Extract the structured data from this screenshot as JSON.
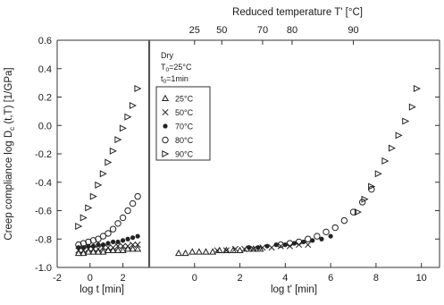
{
  "chart_data": [
    {
      "panel": "left",
      "type": "scatter",
      "xlabel": "log t [min]",
      "ylabel": "Creep compliance log D",
      "ylabel_sub": "c",
      "ylabel_rest": " (t,T) [1/GPa]",
      "xlim": [
        -2,
        3.6
      ],
      "ylim": [
        -1.0,
        0.6
      ],
      "x_ticks": [
        -2,
        0,
        2
      ],
      "y_ticks": [
        "-1.0",
        "-0.8",
        "-0.6",
        "-0.4",
        "-0.2",
        "0.0",
        "0.2",
        "0.4",
        "0.6"
      ],
      "series": [
        {
          "name": "25°C",
          "marker": "triangle",
          "x": [
            -0.7,
            -0.4,
            -0.1,
            0.2,
            0.5,
            0.8,
            1.1,
            1.4,
            1.7,
            2.0,
            2.3,
            2.6,
            2.9
          ],
          "y": [
            -0.9,
            -0.9,
            -0.89,
            -0.89,
            -0.89,
            -0.89,
            -0.88,
            -0.88,
            -0.88,
            -0.88,
            -0.87,
            -0.87,
            -0.87
          ]
        },
        {
          "name": "50°C",
          "marker": "x",
          "x": [
            -0.7,
            -0.4,
            -0.1,
            0.2,
            0.5,
            0.8,
            1.1,
            1.4,
            1.7,
            2.0,
            2.3,
            2.6,
            2.9
          ],
          "y": [
            -0.88,
            -0.88,
            -0.87,
            -0.87,
            -0.87,
            -0.86,
            -0.86,
            -0.86,
            -0.85,
            -0.85,
            -0.85,
            -0.84,
            -0.84
          ]
        },
        {
          "name": "70°C",
          "marker": "dot",
          "x": [
            -0.7,
            -0.4,
            -0.1,
            0.2,
            0.5,
            0.8,
            1.1,
            1.4,
            1.7,
            2.0,
            2.3,
            2.6,
            2.9
          ],
          "y": [
            -0.86,
            -0.86,
            -0.85,
            -0.85,
            -0.84,
            -0.84,
            -0.83,
            -0.82,
            -0.82,
            -0.81,
            -0.8,
            -0.79,
            -0.78
          ]
        },
        {
          "name": "80°C",
          "marker": "circle",
          "x": [
            -0.7,
            -0.4,
            -0.1,
            0.2,
            0.5,
            0.8,
            1.1,
            1.4,
            1.7,
            2.0,
            2.3,
            2.6,
            2.9
          ],
          "y": [
            -0.84,
            -0.83,
            -0.82,
            -0.81,
            -0.8,
            -0.78,
            -0.76,
            -0.73,
            -0.69,
            -0.65,
            -0.6,
            -0.55,
            -0.5
          ]
        },
        {
          "name": "90°C",
          "marker": "right-triangle",
          "x": [
            -0.7,
            -0.4,
            -0.1,
            0.2,
            0.5,
            0.8,
            1.1,
            1.4,
            1.7,
            2.0,
            2.3,
            2.6,
            2.9
          ],
          "y": [
            -0.71,
            -0.65,
            -0.58,
            -0.5,
            -0.42,
            -0.34,
            -0.26,
            -0.18,
            -0.1,
            -0.02,
            0.06,
            0.14,
            0.26
          ]
        }
      ]
    },
    {
      "panel": "right",
      "type": "scatter",
      "xlabel": "log t' [min]",
      "top_axis_label": "Reduced temperature T' [°C]",
      "xlim": [
        -2,
        10.8
      ],
      "ylim": [
        -1.0,
        0.6
      ],
      "x_ticks": [
        0,
        2,
        4,
        6,
        8,
        10
      ],
      "top_ticks": [
        {
          "label": "25",
          "x": 0.0
        },
        {
          "label": "50",
          "x": 1.2
        },
        {
          "label": "70",
          "x": 3.0
        },
        {
          "label": "80",
          "x": 4.3
        },
        {
          "label": "90",
          "x": 7.0
        }
      ],
      "legend": {
        "position": "top-left",
        "condition_lines": [
          {
            "main": "Dry"
          },
          {
            "main": "T",
            "sub": "0",
            "rest": "=25°C"
          },
          {
            "main": "t",
            "sub": "0",
            "rest": "=1min"
          }
        ],
        "entries": [
          {
            "label": "25°C",
            "marker": "triangle"
          },
          {
            "label": "50°C",
            "marker": "x"
          },
          {
            "label": "70°C",
            "marker": "dot"
          },
          {
            "label": "80°C",
            "marker": "circle"
          },
          {
            "label": "90°C",
            "marker": "right-triangle"
          }
        ]
      },
      "series": [
        {
          "name": "25°C",
          "marker": "triangle",
          "x": [
            -0.7,
            -0.4,
            -0.1,
            0.2,
            0.5,
            0.8,
            1.1,
            1.4,
            1.7,
            2.0,
            2.3,
            2.6,
            2.9
          ],
          "y": [
            -0.9,
            -0.9,
            -0.89,
            -0.89,
            -0.89,
            -0.89,
            -0.88,
            -0.88,
            -0.88,
            -0.88,
            -0.87,
            -0.87,
            -0.87
          ]
        },
        {
          "name": "50°C",
          "marker": "x",
          "x": [
            1.0,
            1.4,
            1.8,
            2.2,
            2.6,
            3.0,
            3.4,
            3.8,
            4.2,
            4.6,
            5.0
          ],
          "y": [
            -0.88,
            -0.88,
            -0.87,
            -0.87,
            -0.87,
            -0.86,
            -0.86,
            -0.85,
            -0.85,
            -0.84,
            -0.84
          ]
        },
        {
          "name": "70°C",
          "marker": "dot",
          "x": [
            2.4,
            2.8,
            3.2,
            3.6,
            4.0,
            4.4,
            4.8,
            5.2,
            5.6,
            6.0
          ],
          "y": [
            -0.86,
            -0.86,
            -0.85,
            -0.84,
            -0.84,
            -0.83,
            -0.82,
            -0.81,
            -0.8,
            -0.78
          ]
        },
        {
          "name": "80°C",
          "marker": "circle",
          "x": [
            3.8,
            4.2,
            4.6,
            5.0,
            5.4,
            5.8,
            6.2,
            6.6,
            7.0,
            7.4,
            7.8
          ],
          "y": [
            -0.84,
            -0.83,
            -0.82,
            -0.8,
            -0.78,
            -0.75,
            -0.72,
            -0.67,
            -0.61,
            -0.54,
            -0.45
          ]
        },
        {
          "name": "90°C",
          "marker": "right-triangle",
          "x": [
            7.2,
            7.5,
            7.8,
            8.1,
            8.4,
            8.7,
            9.0,
            9.3,
            9.6,
            9.8
          ],
          "y": [
            -0.61,
            -0.52,
            -0.43,
            -0.34,
            -0.25,
            -0.16,
            -0.07,
            0.03,
            0.13,
            0.26
          ]
        }
      ]
    }
  ]
}
